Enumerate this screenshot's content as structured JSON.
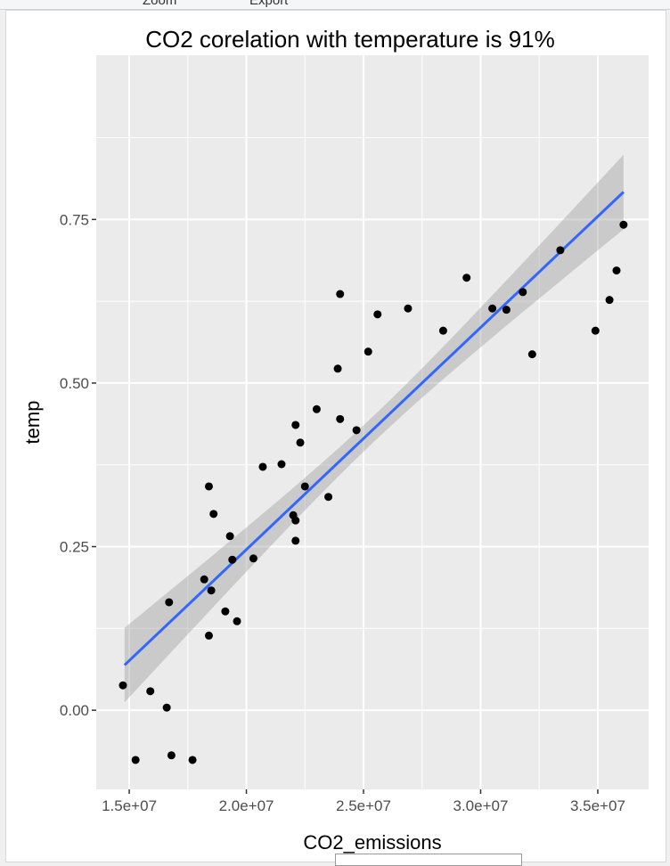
{
  "toolbar": {
    "zoom_label": "Zoom",
    "export_label": "Export"
  },
  "chart_data": {
    "type": "scatter",
    "title": "CO2 corelation with temperature is 91%",
    "xlabel": "CO2_emissions",
    "ylabel": "temp",
    "xlim": [
      13590000,
      37170000
    ],
    "ylim": [
      -0.121,
      1.001
    ],
    "xticks": [
      15000000,
      20000000,
      25000000,
      30000000,
      35000000
    ],
    "xtick_labels": [
      "1.5e+07",
      "2.0e+07",
      "2.5e+07",
      "3.0e+07",
      "3.5e+07"
    ],
    "yticks": [
      0,
      0.25,
      0.5,
      0.75
    ],
    "ytick_labels": [
      "0.00",
      "0.25",
      "0.50",
      "0.75"
    ],
    "grid": true,
    "colors": {
      "panel": "#ebebeb",
      "grid": "#ffffff",
      "points": "#000000",
      "line": "#3366ff",
      "ribbon": "#999999"
    },
    "points": [
      [
        14730000,
        0.038
      ],
      [
        15270000,
        -0.076
      ],
      [
        15900000,
        0.029
      ],
      [
        16600000,
        0.004
      ],
      [
        16700000,
        0.165
      ],
      [
        16800000,
        -0.069
      ],
      [
        17700000,
        -0.076
      ],
      [
        18200000,
        0.2
      ],
      [
        18400000,
        0.342
      ],
      [
        18400000,
        0.114
      ],
      [
        18500000,
        0.183
      ],
      [
        18600000,
        0.3
      ],
      [
        19100000,
        0.151
      ],
      [
        19300000,
        0.266
      ],
      [
        19400000,
        0.23
      ],
      [
        19600000,
        0.136
      ],
      [
        20300000,
        0.232
      ],
      [
        20700000,
        0.372
      ],
      [
        21500000,
        0.376
      ],
      [
        22000000,
        0.298
      ],
      [
        22100000,
        0.29
      ],
      [
        22100000,
        0.259
      ],
      [
        22100000,
        0.436
      ],
      [
        22300000,
        0.409
      ],
      [
        22500000,
        0.342
      ],
      [
        23000000,
        0.46
      ],
      [
        23500000,
        0.326
      ],
      [
        23900000,
        0.522
      ],
      [
        24000000,
        0.636
      ],
      [
        24000000,
        0.445
      ],
      [
        24700000,
        0.428
      ],
      [
        25200000,
        0.548
      ],
      [
        25600000,
        0.605
      ],
      [
        26900000,
        0.614
      ],
      [
        28400000,
        0.58
      ],
      [
        29400000,
        0.661
      ],
      [
        30500000,
        0.614
      ],
      [
        31100000,
        0.612
      ],
      [
        31800000,
        0.639
      ],
      [
        32200000,
        0.544
      ],
      [
        33400000,
        0.703
      ],
      [
        34900000,
        0.58
      ],
      [
        35500000,
        0.627
      ],
      [
        35800000,
        0.672
      ],
      [
        36100000,
        0.742
      ]
    ],
    "fit_line": {
      "method": "lm",
      "x": [
        14800000,
        36100000
      ],
      "y": [
        0.069,
        0.792
      ],
      "se_halfwidth_ends": 0.057,
      "se_halfwidth_mid": 0.02
    }
  }
}
